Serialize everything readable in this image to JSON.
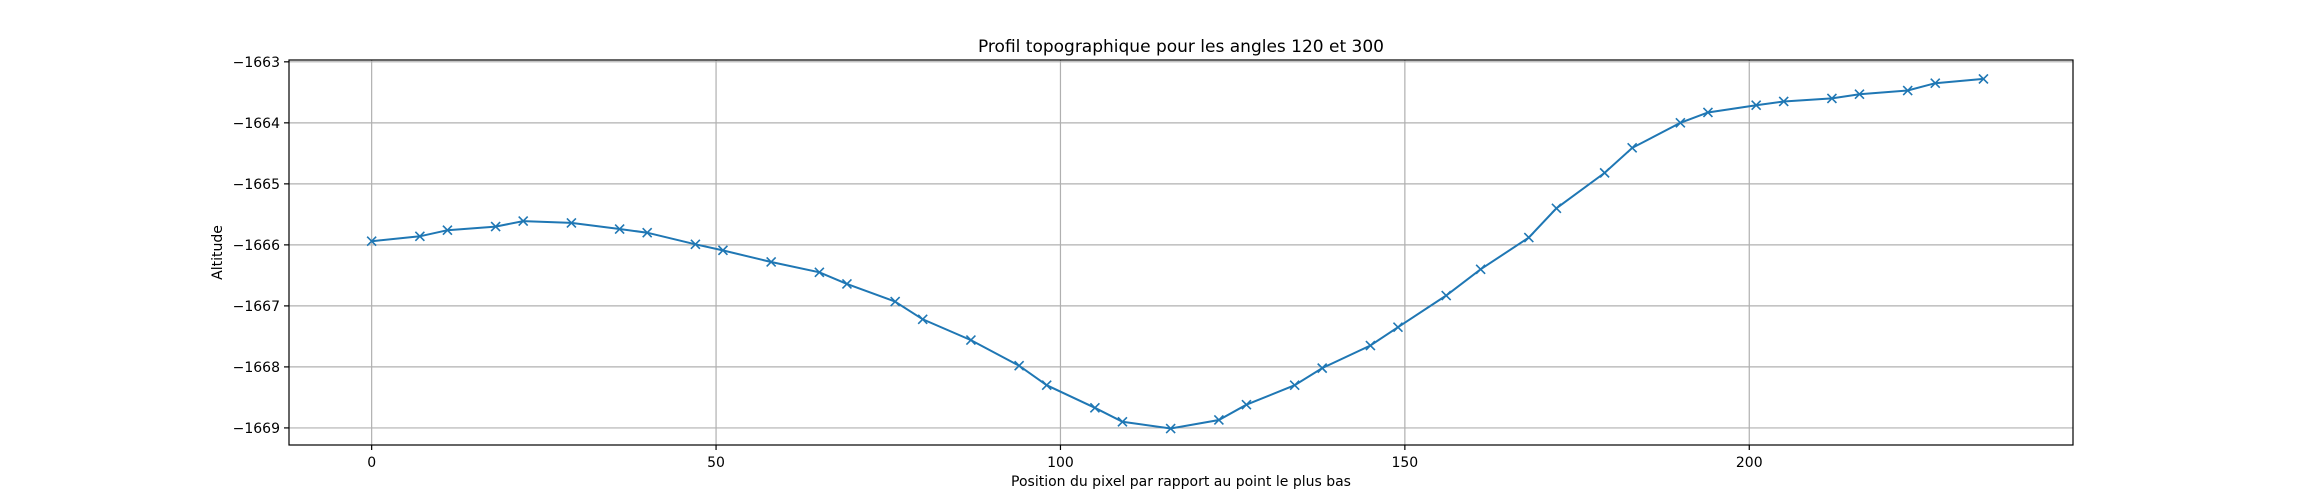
{
  "chart_data": {
    "type": "line",
    "title": "Profil topographique pour les angles 120 et 300",
    "xlabel": "Position du pixel par rapport au point le plus bas",
    "ylabel": "Altitude",
    "xlim": [
      -12,
      247
    ],
    "ylim": [
      -1669.28,
      -1662.97
    ],
    "xticks": [
      0,
      50,
      100,
      150,
      200
    ],
    "yticks": [
      -1669,
      -1668,
      -1667,
      -1666,
      -1665,
      -1664,
      -1663
    ],
    "grid": true,
    "legend": "none",
    "marker": "x",
    "color": "#1f77b4",
    "series": [
      {
        "x": [
          0,
          7,
          11,
          18,
          22,
          29,
          36,
          40,
          47,
          51,
          58,
          65,
          69,
          76,
          80,
          87,
          94,
          98,
          105,
          109,
          116,
          123,
          127,
          134,
          138,
          145,
          149,
          156,
          161,
          168,
          172,
          179,
          183,
          190,
          194,
          201,
          205,
          212,
          216,
          223,
          227,
          234
        ],
        "y": [
          -1665.94,
          -1665.86,
          -1665.76,
          -1665.7,
          -1665.61,
          -1665.64,
          -1665.74,
          -1665.8,
          -1665.99,
          -1666.09,
          -1666.28,
          -1666.45,
          -1666.64,
          -1666.93,
          -1667.22,
          -1667.56,
          -1667.98,
          -1668.3,
          -1668.67,
          -1668.9,
          -1669.01,
          -1668.87,
          -1668.62,
          -1668.3,
          -1668.02,
          -1667.65,
          -1667.35,
          -1666.83,
          -1666.4,
          -1665.88,
          -1665.4,
          -1664.82,
          -1664.41,
          -1664.0,
          -1663.83,
          -1663.71,
          -1663.65,
          -1663.6,
          -1663.53,
          -1663.47,
          -1663.35,
          -1663.28
        ]
      }
    ]
  }
}
